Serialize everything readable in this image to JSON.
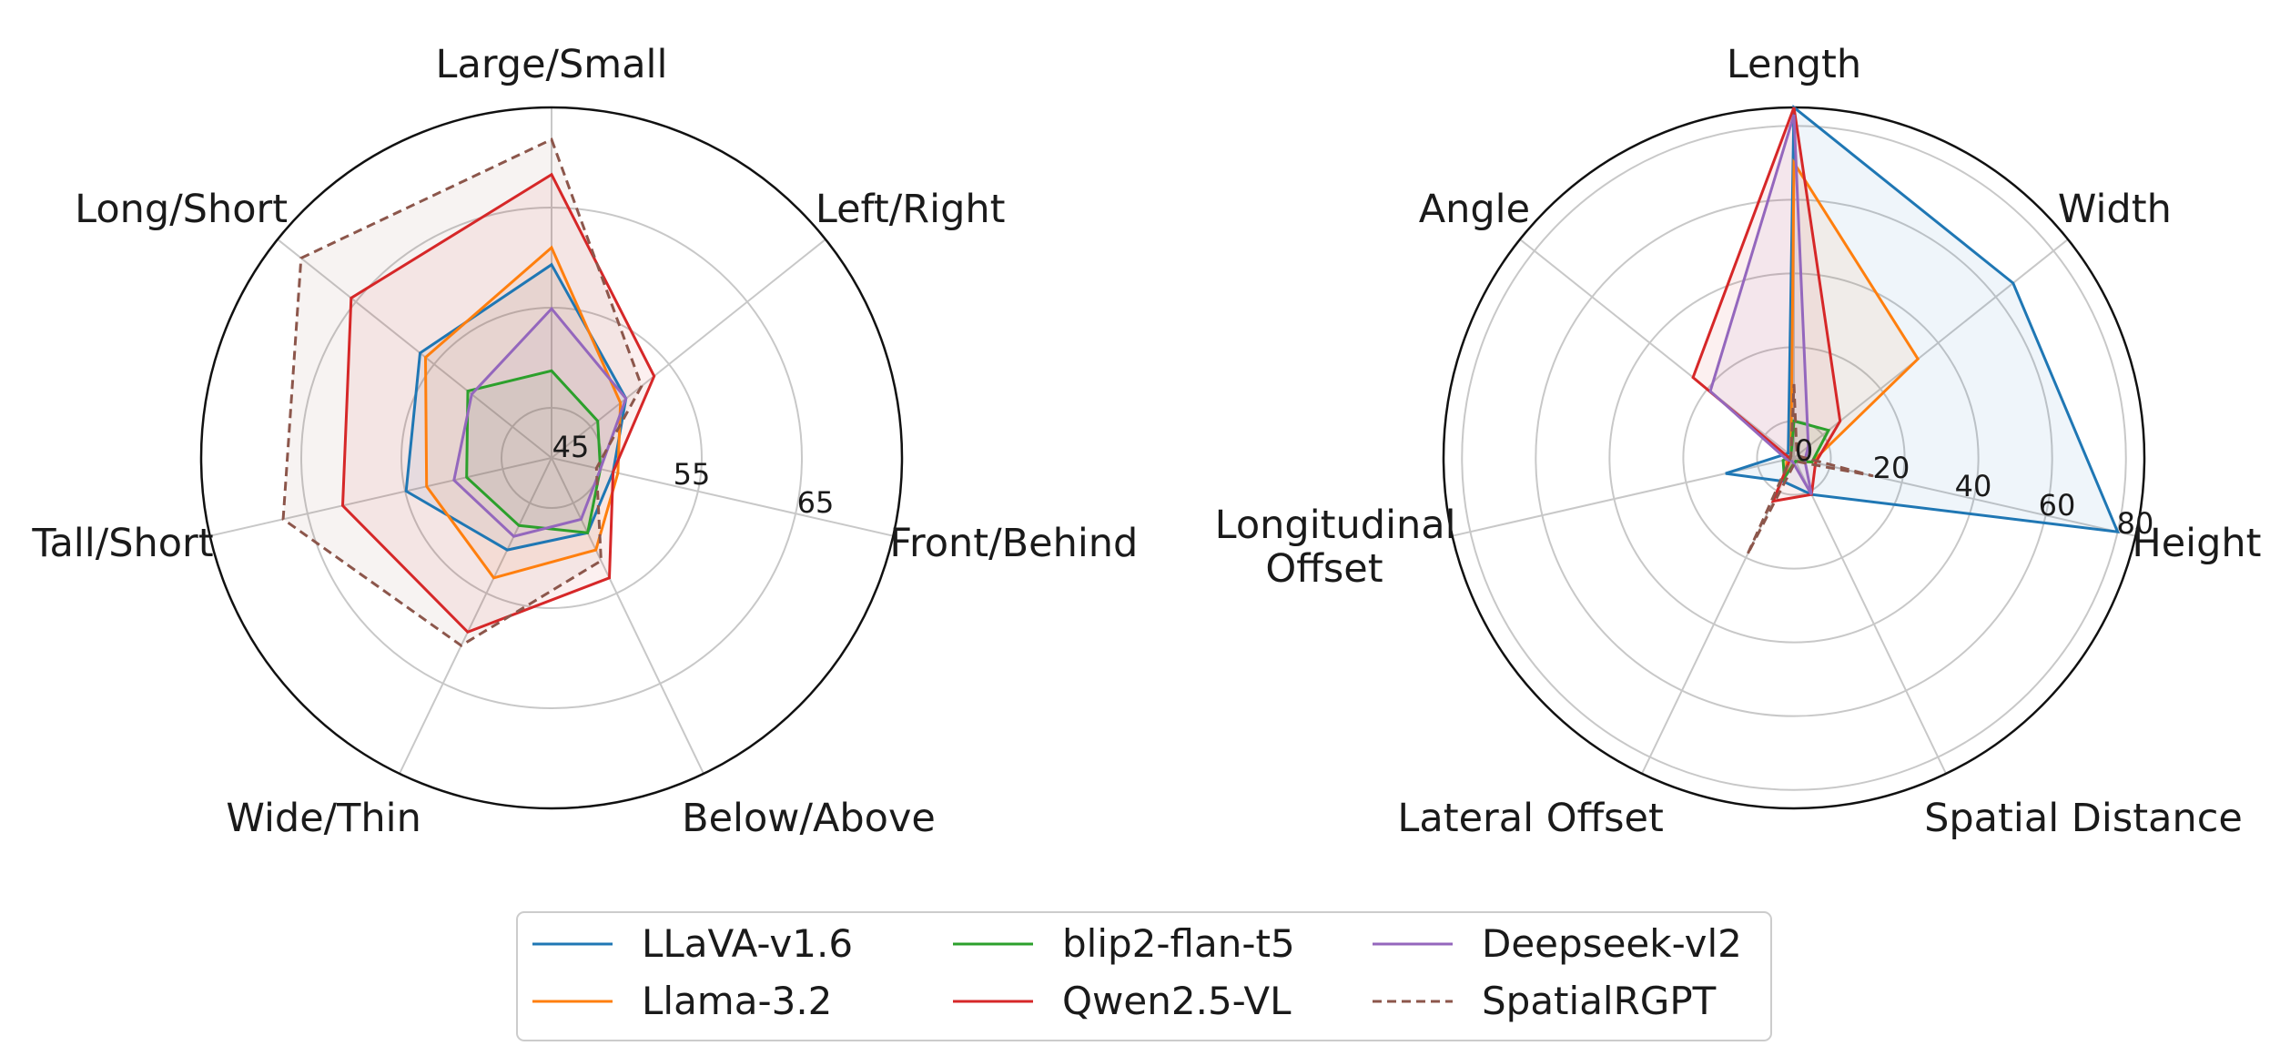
{
  "chart_data": [
    {
      "type": "radar",
      "axes": [
        "Large/Small",
        "Left/Right",
        "Front/Behind",
        "Below/Above",
        "Wide/Thin",
        "Tall/Short",
        "Long/Short"
      ],
      "rlim": [
        40,
        75
      ],
      "r_ticks": [
        45,
        55,
        65
      ],
      "grid": true,
      "series": [
        {
          "name": "LLaVA-v1.6",
          "values": [
            59.3,
            49.5,
            46.3,
            48.3,
            50.2,
            54.9,
            56.8
          ]
        },
        {
          "name": "Llama-3.2",
          "values": [
            61.0,
            48.8,
            46.8,
            50.2,
            53.3,
            52.8,
            56.1
          ]
        },
        {
          "name": "blip2-flan-t5",
          "values": [
            48.7,
            45.9,
            45.0,
            48.3,
            47.5,
            48.7,
            50.7
          ]
        },
        {
          "name": "Qwen2.5-VL",
          "values": [
            68.3,
            53.1,
            46.3,
            53.3,
            59.3,
            61.4,
            65.6
          ]
        },
        {
          "name": "Deepseek-vl2",
          "values": [
            54.9,
            49.5,
            45.0,
            46.8,
            48.7,
            50.0,
            50.2
          ]
        },
        {
          "name": "SpatialRGPT",
          "values": [
            71.8,
            51.5,
            44.6,
            51.4,
            60.8,
            67.5,
            72.0
          ]
        }
      ]
    },
    {
      "type": "radar",
      "axes": [
        "Length",
        "Width",
        "Height",
        "Spatial Distance",
        "Lateral Offset",
        "Longitudinal Offset",
        "Angle"
      ],
      "rlim": [
        -10,
        85
      ],
      "r_ticks": [
        0,
        20,
        40,
        60,
        80
      ],
      "grid": true,
      "series": [
        {
          "name": "LLaVA-v1.6",
          "values": [
            85,
            66,
            80,
            1,
            -3,
            9,
            -8
          ]
        },
        {
          "name": "Llama-3.2",
          "values": [
            70,
            33,
            -5,
            -9,
            -5,
            -8,
            -9
          ]
        },
        {
          "name": "blip2-flan-t5",
          "values": [
            0,
            2,
            -5,
            -9,
            -4,
            -7,
            -9
          ]
        },
        {
          "name": "Qwen2.5-VL",
          "values": [
            85,
            6,
            -4,
            1,
            3,
            -9,
            25
          ]
        },
        {
          "name": "Deepseek-vl2",
          "values": [
            83,
            -5,
            -7,
            1,
            -9,
            -8,
            19
          ]
        },
        {
          "name": "SpatialRGPT",
          "values": [
            10,
            -9,
            12,
            -9,
            19,
            -9,
            -9
          ]
        }
      ]
    }
  ],
  "legend": [
    {
      "name": "LLaVA-v1.6",
      "color": "#1f77b4",
      "dashed": false
    },
    {
      "name": "Llama-3.2",
      "color": "#ff7f0e",
      "dashed": false
    },
    {
      "name": "blip2-flan-t5",
      "color": "#2ca02c",
      "dashed": false
    },
    {
      "name": "Qwen2.5-VL",
      "color": "#d62728",
      "dashed": false
    },
    {
      "name": "Deepseek-vl2",
      "color": "#9467bd",
      "dashed": false
    },
    {
      "name": "SpatialRGPT",
      "color": "#8c564b",
      "dashed": true
    }
  ]
}
